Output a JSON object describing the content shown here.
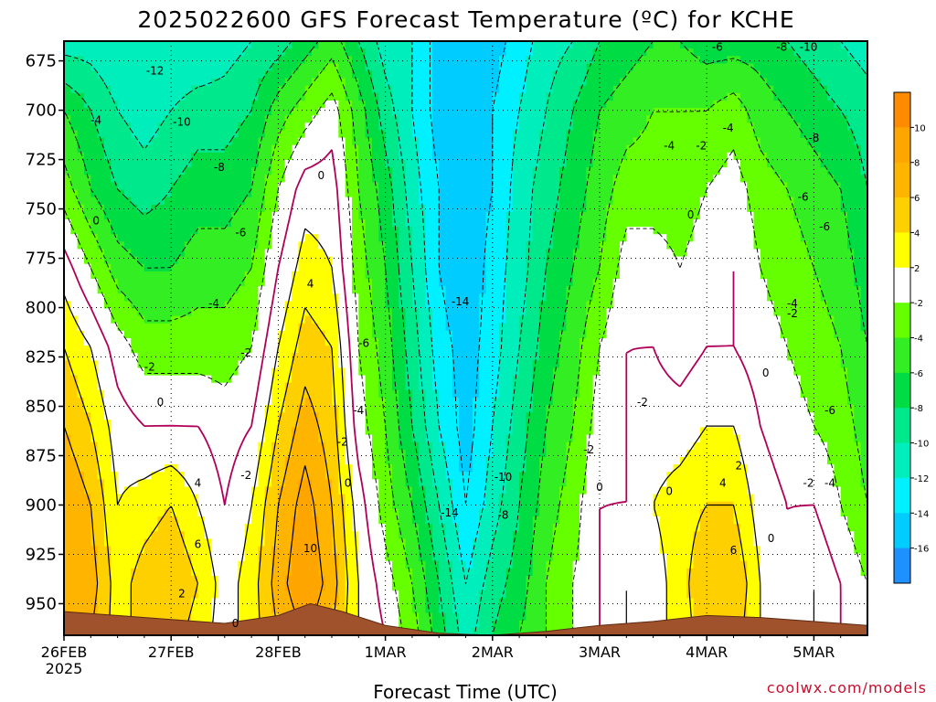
{
  "title": "2025022600 GFS Forecast Temperature (ºC) for KCHE",
  "credit": "coolwx.com/models",
  "chart_data": {
    "type": "heatmap",
    "title": "2025022600 GFS Forecast Temperature (ºC) for KCHE",
    "xlabel": "Forecast Time (UTC)",
    "ylabel": "",
    "x_ticks": [
      "26FEB",
      "27FEB",
      "28FEB",
      "1MAR",
      "2MAR",
      "3MAR",
      "4MAR",
      "5MAR"
    ],
    "x_subtick": "2025",
    "xlim_days": [
      0,
      7.5
    ],
    "y_ticks": [
      675,
      700,
      725,
      750,
      775,
      800,
      825,
      850,
      875,
      900,
      925,
      950
    ],
    "ylim": [
      665,
      966
    ],
    "y_inverted": true,
    "grid": true,
    "colorbar": {
      "ticks": [
        10,
        8,
        6,
        4,
        2,
        -2,
        -4,
        -6,
        -8,
        -10,
        -12,
        -14,
        -16
      ],
      "bins": [
        {
          "lo": 10,
          "hi": 12,
          "color": "#ff8c00"
        },
        {
          "lo": 8,
          "hi": 10,
          "color": "#ffa500"
        },
        {
          "lo": 6,
          "hi": 8,
          "color": "#ffb400"
        },
        {
          "lo": 4,
          "hi": 6,
          "color": "#ffd000"
        },
        {
          "lo": 2,
          "hi": 4,
          "color": "#ffff00"
        },
        {
          "lo": -2,
          "hi": 2,
          "color": "#ffffff"
        },
        {
          "lo": -4,
          "hi": -2,
          "color": "#66ff00"
        },
        {
          "lo": -6,
          "hi": -4,
          "color": "#33ee22"
        },
        {
          "lo": -8,
          "hi": -6,
          "color": "#00dd44"
        },
        {
          "lo": -10,
          "hi": -8,
          "color": "#00e88c"
        },
        {
          "lo": -12,
          "hi": -10,
          "color": "#00eebb"
        },
        {
          "lo": -14,
          "hi": -12,
          "color": "#00f0ff"
        },
        {
          "lo": -16,
          "hi": -14,
          "color": "#00ccff"
        },
        {
          "lo": -18,
          "hi": -16,
          "color": "#1e90ff"
        }
      ]
    },
    "terrain_color": "#a0522d",
    "surface_pressure": [
      [
        0,
        954
      ],
      [
        0.5,
        956
      ],
      [
        1,
        958
      ],
      [
        1.5,
        960
      ],
      [
        2,
        956
      ],
      [
        2.3,
        950
      ],
      [
        2.6,
        954
      ],
      [
        3,
        961
      ],
      [
        3.5,
        965
      ],
      [
        4,
        966
      ],
      [
        4.5,
        964
      ],
      [
        5,
        961
      ],
      [
        5.5,
        959
      ],
      [
        6,
        956
      ],
      [
        6.5,
        957
      ],
      [
        7,
        959
      ],
      [
        7.5,
        961
      ]
    ],
    "column_x": [
      0,
      0.25,
      0.5,
      0.75,
      1,
      1.25,
      1.5,
      1.75,
      2,
      2.25,
      2.5,
      2.75,
      3,
      3.25,
      3.5,
      3.75,
      4,
      4.25,
      4.5,
      4.75,
      5,
      5.25,
      5.5,
      5.75,
      6,
      6.25,
      6.5,
      6.75,
      7,
      7.25,
      7.5
    ],
    "levels": [
      665,
      700,
      740,
      780,
      820,
      860,
      900,
      940,
      966
    ],
    "temperature": [
      [
        -11,
        -11,
        -12,
        -12,
        -12,
        -12,
        -11,
        -10,
        -9,
        -7,
        -5,
        -8,
        -11,
        -12,
        -15,
        -16,
        -15,
        -13,
        -11,
        -10,
        -8,
        -7,
        -6,
        -6,
        -7,
        -7,
        -7,
        -8,
        -9,
        -10,
        -11
      ],
      [
        -6,
        -8,
        -10,
        -11,
        -10,
        -9,
        -9,
        -8,
        -5,
        -3,
        -1,
        -5,
        -9,
        -12,
        -15,
        -16,
        -14,
        -12,
        -10,
        -8,
        -6,
        -5,
        -4,
        -4,
        -4,
        -3,
        -5,
        -6,
        -7,
        -8,
        -9
      ],
      [
        -3,
        -6,
        -8,
        -9,
        -8,
        -7,
        -7,
        -6,
        -2,
        1,
        1,
        -4,
        -7,
        -11,
        -14,
        -16,
        -14,
        -11,
        -9,
        -7,
        -5,
        -3,
        -3,
        -3,
        -2,
        -1,
        -3,
        -4,
        -5,
        -6,
        -8
      ],
      [
        1,
        -2,
        -5,
        -6,
        -6,
        -5,
        -5,
        -4,
        0,
        3,
        2,
        -3,
        -6,
        -10,
        -14,
        -16,
        -13,
        -11,
        -8,
        -6,
        -4,
        -1,
        -1,
        -2,
        -1,
        0,
        -2,
        -3,
        -4,
        -5,
        -7
      ],
      [
        4,
        2,
        -1,
        -3,
        -3,
        -3,
        -3,
        -2,
        2,
        5,
        4,
        -2,
        -5,
        -9,
        -13,
        -15,
        -13,
        -10,
        -7,
        -5,
        -2,
        0,
        0,
        -1,
        0,
        0,
        -1,
        -2,
        -3,
        -4,
        -6
      ],
      [
        6,
        4,
        1,
        0,
        0,
        0,
        -1,
        0,
        4,
        7,
        5,
        -1,
        -4,
        -8,
        -12,
        -15,
        -12,
        -9,
        -6,
        -4,
        -1,
        0,
        1,
        1,
        2,
        2,
        0,
        -1,
        -2,
        -3,
        -5
      ],
      [
        8,
        6,
        2,
        3,
        4,
        2,
        0,
        2,
        6,
        9,
        6,
        1,
        -3,
        -6,
        -10,
        -14,
        -11,
        -8,
        -5,
        -3,
        0,
        0,
        2,
        3,
        4,
        4,
        1,
        0,
        0,
        -2,
        -4
      ],
      [
        8,
        7,
        3,
        5,
        6,
        4,
        1,
        3,
        7,
        10,
        7,
        2,
        -1,
        -4,
        -8,
        -12,
        -9,
        -7,
        -4,
        -2,
        0,
        2,
        1,
        3,
        6,
        6,
        2,
        0,
        2,
        0,
        -2
      ],
      [
        7,
        6,
        3,
        5,
        5,
        3,
        1,
        3,
        6,
        8,
        6,
        2,
        0,
        -3,
        -7,
        -11,
        -8,
        -6,
        -4,
        -2,
        0,
        2,
        1,
        3,
        5,
        5,
        2,
        0,
        2,
        0,
        -2
      ]
    ],
    "contour_labels": [
      {
        "v": "-12",
        "x": 0.85,
        "p": 680,
        "c": "black"
      },
      {
        "v": "-10",
        "x": 1.1,
        "p": 706,
        "c": "black"
      },
      {
        "v": "-8",
        "x": 1.45,
        "p": 729,
        "c": "black"
      },
      {
        "v": "-6",
        "x": 1.65,
        "p": 762,
        "c": "black"
      },
      {
        "v": "-4",
        "x": 1.4,
        "p": 798,
        "c": "black"
      },
      {
        "v": "-4",
        "x": 0.3,
        "p": 705,
        "c": "black"
      },
      {
        "v": "-2",
        "x": 1.7,
        "p": 823,
        "c": "black"
      },
      {
        "v": "-2",
        "x": 0.8,
        "p": 830,
        "c": "black"
      },
      {
        "v": "-2",
        "x": 1.7,
        "p": 885,
        "c": "black"
      },
      {
        "v": "-2",
        "x": 2.6,
        "p": 868,
        "c": "black"
      },
      {
        "v": "0",
        "x": 0.3,
        "p": 756,
        "c": "purple"
      },
      {
        "v": "0",
        "x": 0.9,
        "p": 848,
        "c": "purple"
      },
      {
        "v": "0",
        "x": 2.4,
        "p": 733,
        "c": "purple"
      },
      {
        "v": "0",
        "x": 2.65,
        "p": 889,
        "c": "purple"
      },
      {
        "v": "0",
        "x": 1.6,
        "p": 960,
        "c": "purple"
      },
      {
        "v": "2",
        "x": 1.1,
        "p": 945,
        "c": "black"
      },
      {
        "v": "4",
        "x": 1.25,
        "p": 889,
        "c": "black"
      },
      {
        "v": "4",
        "x": 2.3,
        "p": 788,
        "c": "black"
      },
      {
        "v": "6",
        "x": 1.25,
        "p": 920,
        "c": "black"
      },
      {
        "v": "10",
        "x": 2.3,
        "p": 922,
        "c": "black"
      },
      {
        "v": "-6",
        "x": 2.8,
        "p": 818,
        "c": "black"
      },
      {
        "v": "-4",
        "x": 2.75,
        "p": 852,
        "c": "black"
      },
      {
        "v": "-14",
        "x": 3.7,
        "p": 797,
        "c": "black"
      },
      {
        "v": "-10",
        "x": 4.1,
        "p": 886,
        "c": "black"
      },
      {
        "v": "-14",
        "x": 3.6,
        "p": 904,
        "c": "black"
      },
      {
        "v": "-8",
        "x": 4.1,
        "p": 905,
        "c": "black"
      },
      {
        "v": "-2",
        "x": 4.9,
        "p": 872,
        "c": "black"
      },
      {
        "v": "0",
        "x": 5,
        "p": 891,
        "c": "purple"
      },
      {
        "v": "-2",
        "x": 5.4,
        "p": 848,
        "c": "black"
      },
      {
        "v": "-4",
        "x": 5.65,
        "p": 718,
        "c": "black"
      },
      {
        "v": "-2",
        "x": 5.95,
        "p": 718,
        "c": "black"
      },
      {
        "v": "0",
        "x": 5.85,
        "p": 753,
        "c": "purple"
      },
      {
        "v": "0",
        "x": 5.65,
        "p": 893,
        "c": "purple"
      },
      {
        "v": "2",
        "x": 6.3,
        "p": 880,
        "c": "black"
      },
      {
        "v": "4",
        "x": 6.15,
        "p": 889,
        "c": "black"
      },
      {
        "v": "6",
        "x": 6.25,
        "p": 923,
        "c": "black"
      },
      {
        "v": "0",
        "x": 6.55,
        "p": 833,
        "c": "purple"
      },
      {
        "v": "-6",
        "x": 6.1,
        "p": 668,
        "c": "black"
      },
      {
        "v": "-4",
        "x": 6.2,
        "p": 709,
        "c": "black"
      },
      {
        "v": "-8",
        "x": 6.7,
        "p": 668,
        "c": "black"
      },
      {
        "v": "-10",
        "x": 6.95,
        "p": 668,
        "c": "black"
      },
      {
        "v": "-8",
        "x": 7,
        "p": 714,
        "c": "black"
      },
      {
        "v": "-6",
        "x": 6.9,
        "p": 744,
        "c": "black"
      },
      {
        "v": "-6",
        "x": 7.1,
        "p": 759,
        "c": "black"
      },
      {
        "v": "-4",
        "x": 6.8,
        "p": 798,
        "c": "black"
      },
      {
        "v": "-2",
        "x": 6.8,
        "p": 803,
        "c": "black"
      },
      {
        "v": "-6",
        "x": 7.15,
        "p": 852,
        "c": "black"
      },
      {
        "v": "-2",
        "x": 6.95,
        "p": 889,
        "c": "black"
      },
      {
        "v": "-4",
        "x": 7.15,
        "p": 889,
        "c": "black"
      },
      {
        "v": "0",
        "x": 6.6,
        "p": 917,
        "c": "purple"
      }
    ]
  }
}
